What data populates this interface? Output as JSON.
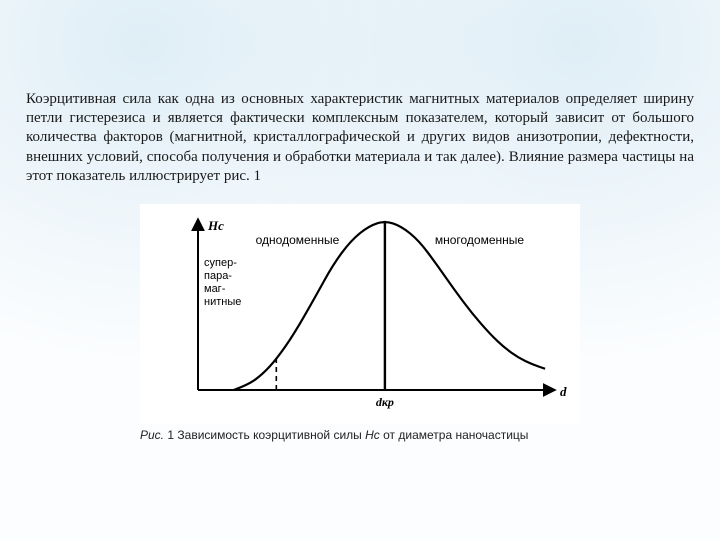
{
  "paragraph": "Коэрцитивная сила как одна из основных характеристик магнитных материалов определяет ширину петли гистерезиса и является фактически комплексным показателем, который зависит от большого количества факторов (магнитной, кристаллографической и других видов анизотропии, дефектности, внешних условий, способа получения и обработки материала и так далее). Влияние размера частицы на этот показатель иллюстрирует рис. 1",
  "chart": {
    "type": "line",
    "y_axis_label": "Hc",
    "y_axis_label_fontstyle": "italic",
    "x_axis_label": "d",
    "x_axis_label_fontstyle": "italic",
    "x_tick_label": "dкр",
    "x_tick_label_fontstyle": "italic",
    "region_label_left": "однодоменные",
    "region_label_right": "многодоменные",
    "side_label_lines": [
      "супер-",
      "пара-",
      "маг-",
      "нитные"
    ],
    "curve_points": [
      {
        "x": 0.1,
        "y": 0.0
      },
      {
        "x": 0.14,
        "y": 0.03
      },
      {
        "x": 0.18,
        "y": 0.09
      },
      {
        "x": 0.22,
        "y": 0.18
      },
      {
        "x": 0.27,
        "y": 0.33
      },
      {
        "x": 0.33,
        "y": 0.55
      },
      {
        "x": 0.38,
        "y": 0.74
      },
      {
        "x": 0.43,
        "y": 0.88
      },
      {
        "x": 0.48,
        "y": 0.965
      },
      {
        "x": 0.525,
        "y": 0.995
      },
      {
        "x": 0.57,
        "y": 0.965
      },
      {
        "x": 0.62,
        "y": 0.88
      },
      {
        "x": 0.67,
        "y": 0.74
      },
      {
        "x": 0.72,
        "y": 0.59
      },
      {
        "x": 0.77,
        "y": 0.45
      },
      {
        "x": 0.82,
        "y": 0.33
      },
      {
        "x": 0.86,
        "y": 0.25
      },
      {
        "x": 0.9,
        "y": 0.19
      },
      {
        "x": 0.94,
        "y": 0.15
      },
      {
        "x": 0.975,
        "y": 0.125
      }
    ],
    "xlim": [
      0,
      1
    ],
    "ylim": [
      0,
      1
    ],
    "d_crit_x": 0.525,
    "superparamag_x": 0.22,
    "axis_color": "#000000",
    "curve_color": "#000000",
    "dash_color": "#000000",
    "background_color": "#ffffff",
    "curve_stroke_width": 2.2,
    "axis_stroke_width": 2.0,
    "arrowhead_size": 7,
    "label_fontsize_pt": 12,
    "axis_label_fontsize_pt": 13,
    "side_label_fontsize_pt": 11
  },
  "caption": {
    "prefix": "Рис.",
    "number": "1",
    "text_before_hc": "Зависимость коэрцитивной силы",
    "hc": "Hc",
    "text_after_hc": "от диаметра наночастицы"
  }
}
